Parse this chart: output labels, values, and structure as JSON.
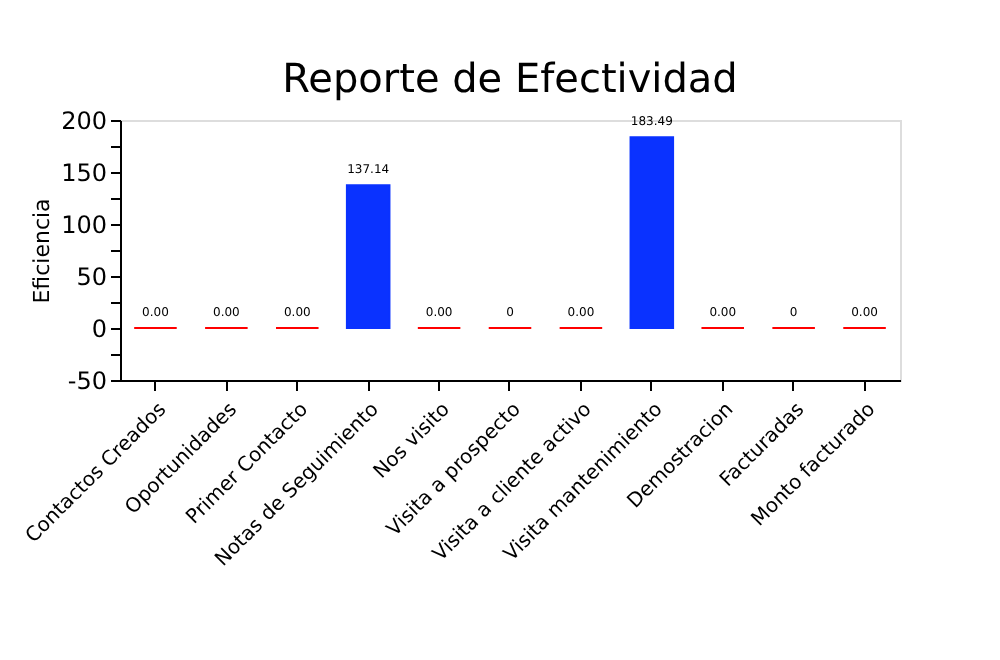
{
  "chart_data": {
    "type": "bar",
    "title": "Reporte de Efectividad",
    "ylabel": "Eficiencia",
    "categories": [
      "Contactos Creados",
      "Oportunidades",
      "Primer Contacto",
      "Notas de Seguimiento",
      "Nos visito",
      "Visita a prospecto",
      "Visita a cliente activo",
      "Visita mantenimiento",
      "Demostracion",
      "Facturadas",
      "Monto facturado"
    ],
    "values": [
      0,
      0,
      0,
      137.14,
      0,
      0,
      0,
      183.49,
      0,
      0,
      0
    ],
    "colors": [
      "#ff0000",
      "#ff0000",
      "#ff0000",
      "#0a32ff",
      "#ff0000",
      "#ff0000",
      "#ff0000",
      "#0a32ff",
      "#ff0000",
      "#ff0000",
      "#ff0000"
    ],
    "value_labels": [
      "0.00",
      "0.00",
      "0.00",
      "137.14",
      "0.00",
      "0",
      "0.00",
      "183.49",
      "0.00",
      "0",
      "0.00"
    ],
    "ylim": [
      -50,
      200
    ],
    "yticks": [
      -50,
      {
        "value": -25,
        "label": null
      },
      0,
      {
        "value": 25,
        "label": null
      },
      50,
      {
        "value": 75,
        "label": null
      },
      100,
      {
        "value": 125,
        "label": null
      },
      150,
      {
        "value": 175,
        "label": null
      },
      200
    ],
    "grid": false
  }
}
